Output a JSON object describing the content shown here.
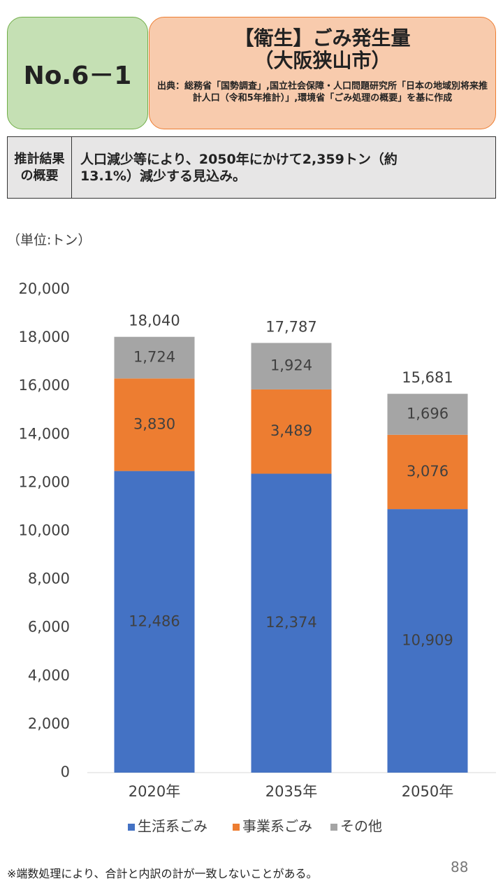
{
  "header": {
    "badge": "No.6－1",
    "title_lines": [
      "【衛生】ごみ発生量",
      "（大阪狭山市）"
    ],
    "source": "出典：総務省「国勢調査」,国立社会保障・人口問題研究所「日本の地域別将来推計人口（令和5年推計）」,環境省「ごみ処理の概要」を基に作成"
  },
  "summary": {
    "label_lines": [
      "推計結果",
      "の概要"
    ],
    "text": "人口減少等により、2050年にかけて2,359トン（約13.1%）減少する見込み。"
  },
  "chart_data": {
    "type": "stacked-bar",
    "unit_label": "（単位:トン）",
    "categories": [
      "2020年",
      "2035年",
      "2050年"
    ],
    "series": [
      {
        "name": "生活系ごみ",
        "color": "#4472c4",
        "values": [
          12486,
          12374,
          10909
        ],
        "value_labels": [
          "12,486",
          "12,374",
          "10,909"
        ]
      },
      {
        "name": "事業系ごみ",
        "color": "#ed7d31",
        "values": [
          3830,
          3489,
          3076
        ],
        "value_labels": [
          "3,830",
          "3,489",
          "3,076"
        ]
      },
      {
        "name": "その他",
        "color": "#a5a5a5",
        "values": [
          1724,
          1924,
          1696
        ],
        "value_labels": [
          "1,724",
          "1,924",
          "1,696"
        ]
      }
    ],
    "totals": {
      "values": [
        18040,
        17787,
        15681
      ],
      "value_labels": [
        "18,040",
        "17,787",
        "15,681"
      ]
    },
    "ylim": [
      0,
      20000
    ],
    "yticks": [
      0,
      {
        "value": 2000,
        "label": "2,000"
      },
      {
        "value": 4000,
        "label": "4,000"
      },
      {
        "value": 6000,
        "label": "6,000"
      },
      {
        "value": 8000,
        "label": "8,000"
      },
      {
        "value": 10000,
        "label": "10,000"
      },
      {
        "value": 12000,
        "label": "12,000"
      },
      {
        "value": 14000,
        "label": "14,000"
      },
      {
        "value": 16000,
        "label": "16,000"
      },
      {
        "value": 18000,
        "label": "18,000"
      },
      {
        "value": 20000,
        "label": "20,000"
      }
    ],
    "grid": false,
    "legend": "bottom"
  },
  "footer": {
    "note": "※端数処理により、合計と内訳の計が一致しないことがある。",
    "page": "88"
  }
}
